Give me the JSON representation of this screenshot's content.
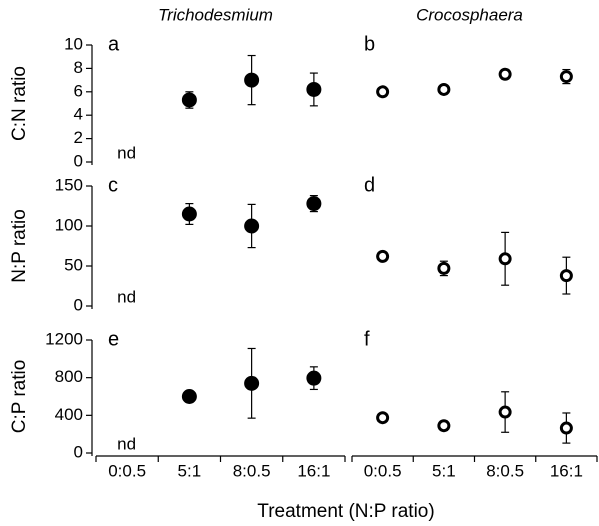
{
  "chart_data": [
    {
      "type": "scatter",
      "title": "Trichodesmium",
      "panel_label": "a",
      "ylabel": "C:N ratio",
      "categories": [
        "0:0.5",
        "5:1",
        "8:0.5",
        "16:1"
      ],
      "values": [
        null,
        5.3,
        7.0,
        6.2
      ],
      "errors": [
        null,
        0.7,
        2.1,
        1.4
      ],
      "annotation": "nd",
      "filled": true,
      "color": "#000000",
      "ylim": [
        0,
        10
      ],
      "yticks": [
        0,
        2,
        4,
        6,
        8,
        10
      ]
    },
    {
      "type": "scatter",
      "title": "Crocosphaera",
      "panel_label": "b",
      "categories": [
        "0:0.5",
        "5:1",
        "8:0.5",
        "16:1"
      ],
      "values": [
        6.0,
        6.2,
        7.5,
        7.3
      ],
      "errors": [
        0.2,
        0.3,
        0.4,
        0.6
      ],
      "filled": false,
      "color": "#000000",
      "ylim": [
        0,
        10
      ]
    },
    {
      "type": "scatter",
      "panel_label": "c",
      "ylabel": "N:P ratio",
      "categories": [
        "0:0.5",
        "5:1",
        "8:0.5",
        "16:1"
      ],
      "values": [
        null,
        115,
        100,
        128
      ],
      "errors": [
        null,
        13,
        27,
        10
      ],
      "annotation": "nd",
      "filled": true,
      "color": "#000000",
      "ylim": [
        0,
        150
      ],
      "yticks": [
        0,
        50,
        100,
        150
      ]
    },
    {
      "type": "scatter",
      "panel_label": "d",
      "categories": [
        "0:0.5",
        "5:1",
        "8:0.5",
        "16:1"
      ],
      "values": [
        62,
        47,
        59,
        38
      ],
      "errors": [
        3,
        9,
        33,
        23
      ],
      "filled": false,
      "color": "#000000",
      "ylim": [
        0,
        150
      ]
    },
    {
      "type": "scatter",
      "panel_label": "e",
      "ylabel": "C:P ratio",
      "categories": [
        "0:0.5",
        "5:1",
        "8:0.5",
        "16:1"
      ],
      "values": [
        null,
        600,
        740,
        795
      ],
      "errors": [
        null,
        20,
        370,
        120
      ],
      "annotation": "nd",
      "filled": true,
      "color": "#000000",
      "ylim": [
        0,
        1200
      ],
      "yticks": [
        0,
        400,
        800,
        1200
      ]
    },
    {
      "type": "scatter",
      "panel_label": "f",
      "categories": [
        "0:0.5",
        "5:1",
        "8:0.5",
        "16:1"
      ],
      "values": [
        375,
        290,
        435,
        265
      ],
      "errors": [
        20,
        50,
        215,
        160
      ],
      "filled": false,
      "color": "#000000",
      "ylim": [
        0,
        1200
      ]
    }
  ],
  "xlabel": "Treatment (N:P ratio)"
}
